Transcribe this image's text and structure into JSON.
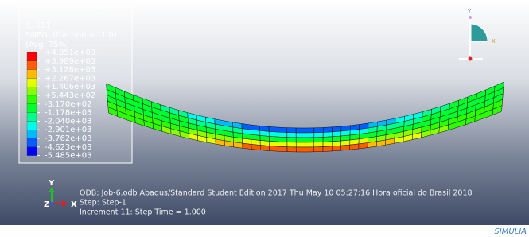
{
  "legend": {
    "title_lines": [
      "S, S11",
      "SNEG, (fraction = -1.0)",
      "(Avg: 75%)"
    ],
    "labels": [
      "+4.851e+03",
      "+3.989e+03",
      "+3.128e+03",
      "+2.267e+03",
      "+1.406e+03",
      "+5.443e+02",
      "-3.170e+02",
      "-1.178e+03",
      "-2.040e+03",
      "-2.901e+03",
      "-3.762e+03",
      "-4.623e+03",
      "-5.485e+03"
    ],
    "colors": [
      "#ff0000",
      "#ff5d00",
      "#ffb900",
      "#e8ff00",
      "#8bff00",
      "#2eff00",
      "#00ff2e",
      "#00ff8b",
      "#00ffe8",
      "#00b9ff",
      "#005dff",
      "#0000ff"
    ]
  },
  "view_triad": {
    "y": "Y",
    "x": "X"
  },
  "axis_triad": {
    "y": "Y",
    "z": "Z",
    "x": "X"
  },
  "info": [
    "ODB: Job-6.odb    Abaqus/Standard Student Edition 2017    Thu May 10 05:27:16 Hora oficial do Brasil 2018",
    "Step: Step-1",
    "Increment     11: Step Time =    1.000"
  ],
  "brand": "SIMULIA"
}
